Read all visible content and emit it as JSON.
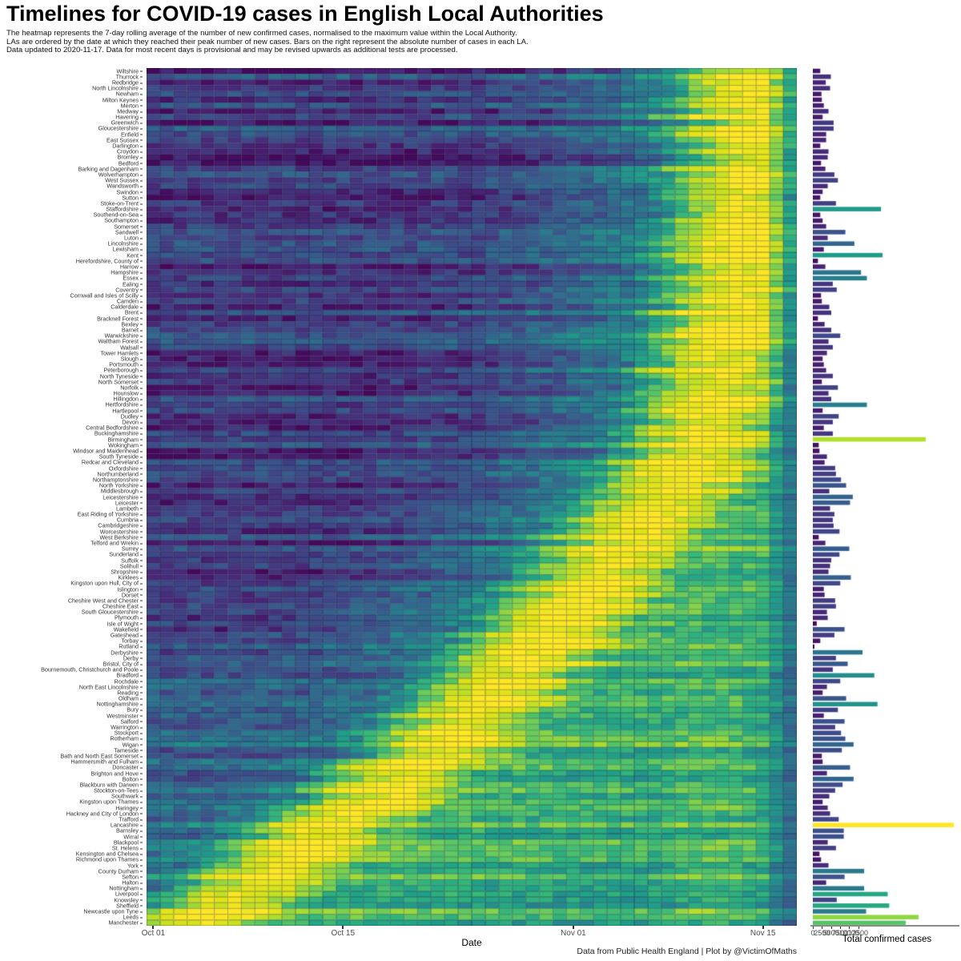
{
  "title": "Timelines for COVID-19 cases in English Local Authorities",
  "subtitle_lines": [
    "The heatmap represents the 7-day rolling average of the number of new confirmed cases, normalised to the maximum value within the Local Authority.",
    "LAs are ordered by the date at which they reached their peak number of new cases. Bars on the right represent the absolute number of cases in each LA.",
    "Data updated to 2020-11-17. Data for most recent days is provisional and may be revised upwards as additional tests are processed."
  ],
  "caption": "Data from Public Health England | Plot by @VictimOfMaths",
  "heatmap_axis": {
    "xlabel": "Date",
    "ticks": [
      "Oct 01",
      "Oct 15",
      "Nov 01",
      "Nov 15"
    ],
    "tick_day_index": [
      0,
      14,
      31,
      45
    ]
  },
  "bar_axis": {
    "xlabel": "Total confirmed cases",
    "ticks": [
      "0",
      "2500",
      "5000",
      "7500",
      "10000",
      "12500"
    ],
    "tick_px_spacing": 11.3
  },
  "chart_data": {
    "type": "heatmap",
    "x_start_label": "Oct 01",
    "x_end_label": "Nov 17",
    "n_days": 48,
    "value_definition": "7-day rolling average of new confirmed cases, normalised to LA maximum (0-1)",
    "bar_value_definition": "total confirmed cases per LA, bar colour = viridis(total/max_total)",
    "axis_max_total": 37000,
    "max_total": 36000,
    "palette": "viridis",
    "palette_stops": [
      "#440154",
      "#482878",
      "#3E4A89",
      "#31688E",
      "#26828E",
      "#1F9E89",
      "#35B779",
      "#6DCD59",
      "#B4DE2C",
      "#DFE318",
      "#FDE725"
    ],
    "rows": [
      {
        "n": "Wiltshire",
        "t": 1900,
        "p": 45
      },
      {
        "n": "Thurrock",
        "t": 4600,
        "p": 45
      },
      {
        "n": "Redbridge",
        "t": 3300,
        "p": 44
      },
      {
        "n": "North Lincolnshire",
        "t": 4400,
        "p": 45
      },
      {
        "n": "Newham",
        "t": 2200,
        "p": 46
      },
      {
        "n": "Milton Keynes",
        "t": 2300,
        "p": 44
      },
      {
        "n": "Merton",
        "t": 2800,
        "p": 45
      },
      {
        "n": "Medway",
        "t": 4000,
        "p": 45
      },
      {
        "n": "Havering",
        "t": 2500,
        "p": 43
      },
      {
        "n": "Greenwich",
        "t": 5300,
        "p": 46
      },
      {
        "n": "Gloucestershire",
        "t": 5300,
        "p": 45
      },
      {
        "n": "Enfield",
        "t": 3400,
        "p": 44
      },
      {
        "n": "East Sussex",
        "t": 3400,
        "p": 45
      },
      {
        "n": "Darlington",
        "t": 1900,
        "p": 46
      },
      {
        "n": "Croydon",
        "t": 4000,
        "p": 44
      },
      {
        "n": "Bromley",
        "t": 3800,
        "p": 45
      },
      {
        "n": "Bedford",
        "t": 2100,
        "p": 45
      },
      {
        "n": "Barking and Dagenham",
        "t": 3200,
        "p": 43
      },
      {
        "n": "Wolverhampton",
        "t": 5500,
        "p": 46
      },
      {
        "n": "West Sussex",
        "t": 6400,
        "p": 44
      },
      {
        "n": "Wandsworth",
        "t": 3800,
        "p": 45
      },
      {
        "n": "Swindon",
        "t": 2500,
        "p": 44
      },
      {
        "n": "Sutton",
        "t": 1900,
        "p": 43
      },
      {
        "n": "Stoke-on-Trent",
        "t": 5900,
        "p": 45
      },
      {
        "n": "Staffordshire",
        "t": 17400,
        "p": 44
      },
      {
        "n": "Southend-on-Sea",
        "t": 1900,
        "p": 45
      },
      {
        "n": "Southampton",
        "t": 2500,
        "p": 43
      },
      {
        "n": "Somerset",
        "t": 3400,
        "p": 44
      },
      {
        "n": "Sandwell",
        "t": 8300,
        "p": 45
      },
      {
        "n": "Luton",
        "t": 3800,
        "p": 44
      },
      {
        "n": "Lincolnshire",
        "t": 10600,
        "p": 44
      },
      {
        "n": "Lewisham",
        "t": 2800,
        "p": 45
      },
      {
        "n": "Kent",
        "t": 17800,
        "p": 43
      },
      {
        "n": "Herefordshire, County of",
        "t": 1300,
        "p": 44
      },
      {
        "n": "Harrow",
        "t": 3200,
        "p": 44
      },
      {
        "n": "Hampshire",
        "t": 12300,
        "p": 45
      },
      {
        "n": "Essex",
        "t": 13800,
        "p": 43
      },
      {
        "n": "Ealing",
        "t": 5100,
        "p": 44
      },
      {
        "n": "Coventry",
        "t": 6100,
        "p": 45
      },
      {
        "n": "Cornwall and Isles of Scilly",
        "t": 2100,
        "p": 43
      },
      {
        "n": "Camden",
        "t": 2300,
        "p": 43
      },
      {
        "n": "Calderdale",
        "t": 4200,
        "p": 44
      },
      {
        "n": "Brent",
        "t": 4700,
        "p": 42
      },
      {
        "n": "Bracknell Forest",
        "t": 1300,
        "p": 43
      },
      {
        "n": "Bexley",
        "t": 3000,
        "p": 44
      },
      {
        "n": "Barnet",
        "t": 4700,
        "p": 43
      },
      {
        "n": "Warwickshire",
        "t": 7000,
        "p": 42
      },
      {
        "n": "Waltham Forest",
        "t": 4000,
        "p": 44
      },
      {
        "n": "Walsall",
        "t": 5100,
        "p": 43
      },
      {
        "n": "Tower Hamlets",
        "t": 3600,
        "p": 42
      },
      {
        "n": "Slough",
        "t": 2500,
        "p": 42
      },
      {
        "n": "Portsmouth",
        "t": 2800,
        "p": 43
      },
      {
        "n": "Peterborough",
        "t": 3400,
        "p": 41
      },
      {
        "n": "North Tyneside",
        "t": 5100,
        "p": 42
      },
      {
        "n": "North Somerset",
        "t": 2300,
        "p": 43
      },
      {
        "n": "Norfolk",
        "t": 6400,
        "p": 42
      },
      {
        "n": "Hounslow",
        "t": 4000,
        "p": 41
      },
      {
        "n": "Hillingdon",
        "t": 4700,
        "p": 43
      },
      {
        "n": "Hertfordshire",
        "t": 13800,
        "p": 42
      },
      {
        "n": "Hartlepool",
        "t": 2500,
        "p": 41
      },
      {
        "n": "Dudley",
        "t": 6600,
        "p": 41
      },
      {
        "n": "Devon",
        "t": 5100,
        "p": 42
      },
      {
        "n": "Central Bedfordshire",
        "t": 2800,
        "p": 40
      },
      {
        "n": "Buckinghamshire",
        "t": 5100,
        "p": 41
      },
      {
        "n": "Birmingham",
        "t": 28800,
        "p": 42
      },
      {
        "n": "Wokingham",
        "t": 1500,
        "p": 40
      },
      {
        "n": "Windsor and Maidenhead",
        "t": 1700,
        "p": 41
      },
      {
        "n": "South Tyneside",
        "t": 3600,
        "p": 40
      },
      {
        "n": "Redcar and Cleveland",
        "t": 3000,
        "p": 39
      },
      {
        "n": "Oxfordshire",
        "t": 5700,
        "p": 40
      },
      {
        "n": "Northumberland",
        "t": 5900,
        "p": 39
      },
      {
        "n": "Northamptonshire",
        "t": 7200,
        "p": 40
      },
      {
        "n": "North Yorkshire",
        "t": 8500,
        "p": 38
      },
      {
        "n": "Middlesbrough",
        "t": 4200,
        "p": 39
      },
      {
        "n": "Leicestershire",
        "t": 10200,
        "p": 38
      },
      {
        "n": "Leicester",
        "t": 9500,
        "p": 37
      },
      {
        "n": "Lambeth",
        "t": 4400,
        "p": 38
      },
      {
        "n": "East Riding of Yorkshire",
        "t": 5500,
        "p": 37
      },
      {
        "n": "Cumbria",
        "t": 5100,
        "p": 36
      },
      {
        "n": "Cambridgeshire",
        "t": 5300,
        "p": 37
      },
      {
        "n": "Worcestershire",
        "t": 6800,
        "p": 36
      },
      {
        "n": "West Berkshire",
        "t": 1500,
        "p": 35
      },
      {
        "n": "Telford and Wrekin",
        "t": 3200,
        "p": 36
      },
      {
        "n": "Surrey",
        "t": 9300,
        "p": 35
      },
      {
        "n": "Sunderland",
        "t": 6800,
        "p": 34
      },
      {
        "n": "Suffolk",
        "t": 4700,
        "p": 35
      },
      {
        "n": "Solihull",
        "t": 4400,
        "p": 34
      },
      {
        "n": "Shropshire",
        "t": 4000,
        "p": 33
      },
      {
        "n": "Kirklees",
        "t": 9700,
        "p": 34
      },
      {
        "n": "Kingston upon Hull, City of",
        "t": 7000,
        "p": 33
      },
      {
        "n": "Islington",
        "t": 2800,
        "p": 32
      },
      {
        "n": "Dorset",
        "t": 3000,
        "p": 33
      },
      {
        "n": "Cheshire West and Chester",
        "t": 5700,
        "p": 31
      },
      {
        "n": "Cheshire East",
        "t": 5900,
        "p": 32
      },
      {
        "n": "South Gloucestershire",
        "t": 3600,
        "p": 31
      },
      {
        "n": "Plymouth",
        "t": 3800,
        "p": 30
      },
      {
        "n": "Isle of Wight",
        "t": 1000,
        "p": 31
      },
      {
        "n": "Wakefield",
        "t": 8100,
        "p": 30
      },
      {
        "n": "Gateshead",
        "t": 5500,
        "p": 29
      },
      {
        "n": "Torbay",
        "t": 1900,
        "p": 30
      },
      {
        "n": "Rutland",
        "t": 400,
        "p": 29
      },
      {
        "n": "Derbyshire",
        "t": 12700,
        "p": 28
      },
      {
        "n": "Derby",
        "t": 5900,
        "p": 27
      },
      {
        "n": "Bristol, City of",
        "t": 8900,
        "p": 28
      },
      {
        "n": "Bournemouth, Christchurch and Poole",
        "t": 5100,
        "p": 27
      },
      {
        "n": "Bradford",
        "t": 15700,
        "p": 26
      },
      {
        "n": "Rochdale",
        "t": 7000,
        "p": 27
      },
      {
        "n": "North East Lincolnshire",
        "t": 3600,
        "p": 26
      },
      {
        "n": "Reading",
        "t": 2500,
        "p": 25
      },
      {
        "n": "Oldham",
        "t": 8500,
        "p": 26
      },
      {
        "n": "Nottinghamshire",
        "t": 16500,
        "p": 25
      },
      {
        "n": "Bury",
        "t": 6400,
        "p": 24
      },
      {
        "n": "Westminster",
        "t": 2800,
        "p": 23
      },
      {
        "n": "Salford",
        "t": 8100,
        "p": 24
      },
      {
        "n": "Warrington",
        "t": 5700,
        "p": 23
      },
      {
        "n": "Stockport",
        "t": 7200,
        "p": 22
      },
      {
        "n": "Rotherham",
        "t": 8300,
        "p": 23
      },
      {
        "n": "Wigan",
        "t": 10400,
        "p": 22
      },
      {
        "n": "Tameside",
        "t": 7400,
        "p": 21
      },
      {
        "n": "Bath and North East Somerset",
        "t": 2300,
        "p": 22
      },
      {
        "n": "Hammersmith and Fulham",
        "t": 2500,
        "p": 20
      },
      {
        "n": "Doncaster",
        "t": 9500,
        "p": 19
      },
      {
        "n": "Brighton and Hove",
        "t": 3600,
        "p": 18
      },
      {
        "n": "Bolton",
        "t": 10400,
        "p": 19
      },
      {
        "n": "Blackburn with Darwen",
        "t": 7600,
        "p": 18
      },
      {
        "n": "Stockton-on-Tees",
        "t": 5700,
        "p": 17
      },
      {
        "n": "Southwark",
        "t": 4200,
        "p": 18
      },
      {
        "n": "Kingston upon Thames",
        "t": 2500,
        "p": 17
      },
      {
        "n": "Haringey",
        "t": 3800,
        "p": 16
      },
      {
        "n": "Hackney and City of London",
        "t": 4400,
        "p": 15
      },
      {
        "n": "Trafford",
        "t": 6600,
        "p": 14
      },
      {
        "n": "Lancashire",
        "t": 36000,
        "p": 13
      },
      {
        "n": "Barnsley",
        "t": 7900,
        "p": 12
      },
      {
        "n": "Wirral",
        "t": 7900,
        "p": 13
      },
      {
        "n": "Blackpool",
        "t": 3800,
        "p": 12
      },
      {
        "n": "St. Helens",
        "t": 5900,
        "p": 11
      },
      {
        "n": "Kensington and Chelsea",
        "t": 1700,
        "p": 12
      },
      {
        "n": "Richmond upon Thames",
        "t": 2100,
        "p": 11
      },
      {
        "n": "York",
        "t": 4000,
        "p": 10
      },
      {
        "n": "County Durham",
        "t": 13100,
        "p": 9
      },
      {
        "n": "Sefton",
        "t": 8100,
        "p": 8
      },
      {
        "n": "Halton",
        "t": 3400,
        "p": 9
      },
      {
        "n": "Nottingham",
        "t": 13100,
        "p": 8
      },
      {
        "n": "Liverpool",
        "t": 19100,
        "p": 7
      },
      {
        "n": "Knowsley",
        "t": 6100,
        "p": 6
      },
      {
        "n": "Sheffield",
        "t": 19500,
        "p": 6
      },
      {
        "n": "Newcastle upon Tyne",
        "t": 13600,
        "p": 5
      },
      {
        "n": "Leeds",
        "t": 27000,
        "p": 4
      },
      {
        "n": "Manchester",
        "t": 23700,
        "p": 3
      }
    ]
  }
}
